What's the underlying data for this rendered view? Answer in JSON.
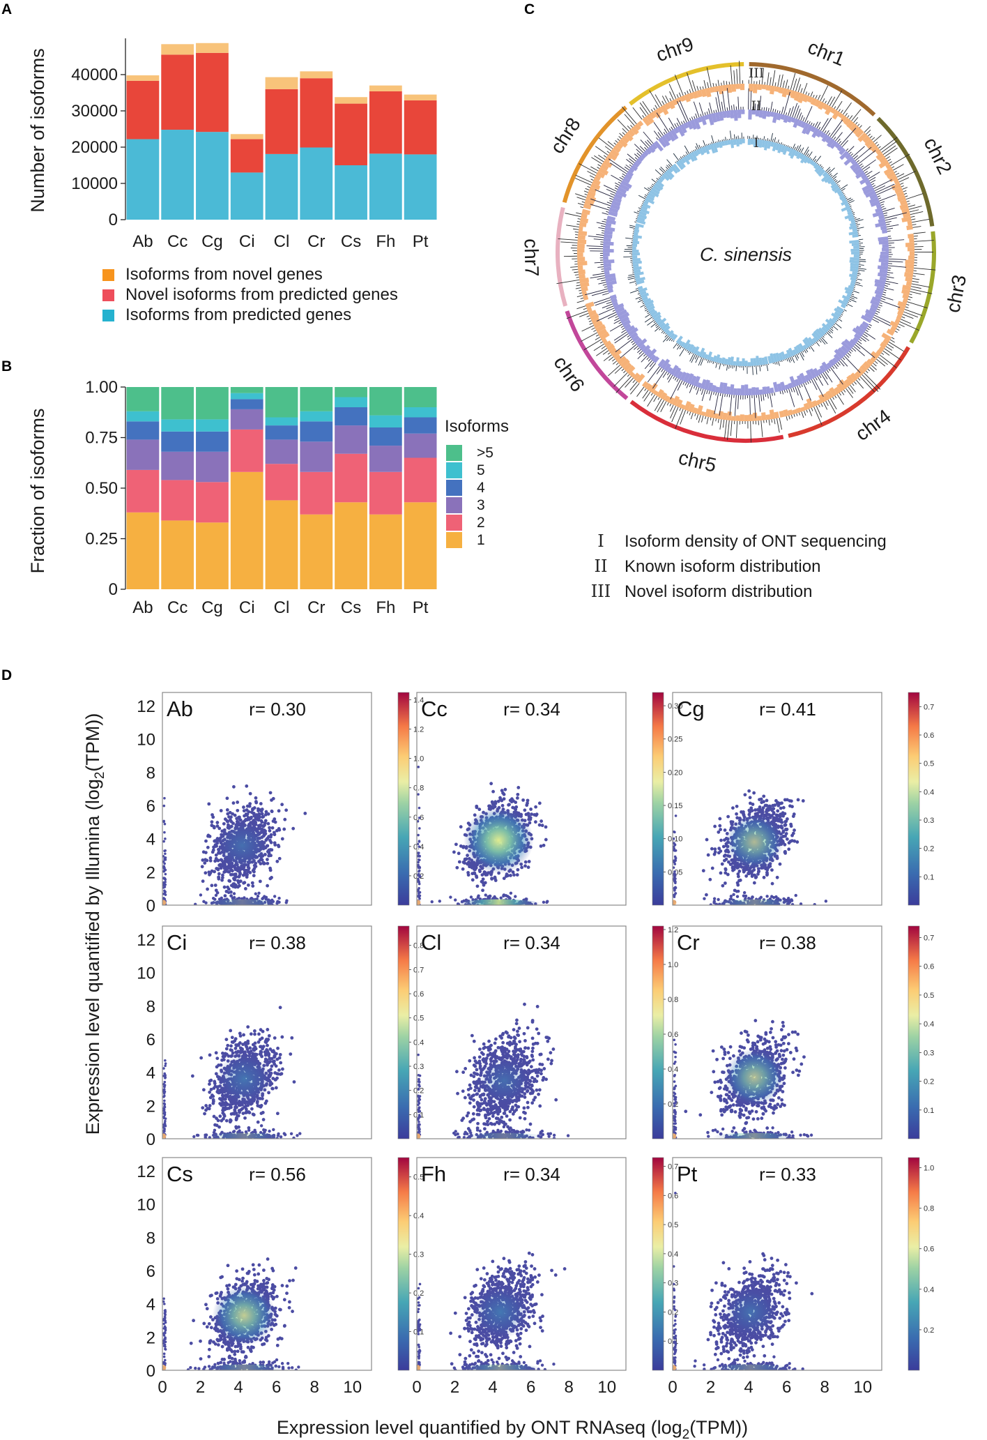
{
  "panel_labels": {
    "a": "A",
    "b": "B",
    "c": "C",
    "d": "D"
  },
  "chart_data": [
    {
      "type": "bar",
      "stacked": true,
      "title": "",
      "ylabel": "Number of isoforms",
      "xlabel": "",
      "ylim": [
        0,
        50000
      ],
      "yticks": [
        0,
        10000,
        20000,
        30000,
        40000
      ],
      "categories": [
        "Ab",
        "Cc",
        "Cg",
        "Ci",
        "Cl",
        "Cr",
        "Cs",
        "Fh",
        "Pt"
      ],
      "series": [
        {
          "name": "Isoforms from predicted genes",
          "color": "#4bbad6",
          "values": [
            22200,
            24800,
            24200,
            13000,
            18100,
            19900,
            15000,
            18200,
            18000
          ]
        },
        {
          "name": "Novel isoforms from predicted genes",
          "color": "#e8463a",
          "values": [
            16100,
            20700,
            21800,
            9200,
            17900,
            19100,
            17000,
            17200,
            14900
          ]
        },
        {
          "name": "Isoforms from novel genes",
          "color": "#f8c37a",
          "values": [
            1500,
            2900,
            2700,
            1400,
            3300,
            1900,
            1800,
            1600,
            1600
          ]
        }
      ],
      "legend": [
        {
          "label": "Isoforms from novel genes",
          "color": "#f7941d"
        },
        {
          "label": "Novel isoforms from predicted genes",
          "color": "#ee4e5b"
        },
        {
          "label": "Isoforms from predicted genes",
          "color": "#25b2cf"
        }
      ]
    },
    {
      "type": "bar",
      "stacked": true,
      "title": "",
      "ylabel": "Fraction of isoforms",
      "xlabel": "",
      "ylim": [
        0,
        1.0
      ],
      "yticks": [
        "0",
        "0.25",
        "0.50",
        "0.75",
        "1.00"
      ],
      "ytick_values": [
        0,
        0.25,
        0.5,
        0.75,
        1.0
      ],
      "categories": [
        "Ab",
        "Cc",
        "Cg",
        "Ci",
        "Cl",
        "Cr",
        "Cs",
        "Fh",
        "Pt"
      ],
      "legend_title": "Isoforms",
      "series": [
        {
          "name": "1",
          "color": "#f6b041",
          "values": [
            0.38,
            0.34,
            0.33,
            0.58,
            0.44,
            0.37,
            0.43,
            0.37,
            0.43
          ]
        },
        {
          "name": "2",
          "color": "#ef6276",
          "values": [
            0.21,
            0.2,
            0.2,
            0.21,
            0.18,
            0.21,
            0.24,
            0.21,
            0.22
          ]
        },
        {
          "name": "3",
          "color": "#8a72ba",
          "values": [
            0.15,
            0.14,
            0.15,
            0.1,
            0.12,
            0.15,
            0.14,
            0.13,
            0.12
          ]
        },
        {
          "name": "4",
          "color": "#4472bf",
          "values": [
            0.09,
            0.1,
            0.1,
            0.05,
            0.07,
            0.1,
            0.09,
            0.09,
            0.08
          ]
        },
        {
          "name": "5",
          "color": "#3ec0cf",
          "values": [
            0.05,
            0.06,
            0.06,
            0.03,
            0.04,
            0.05,
            0.05,
            0.06,
            0.05
          ]
        },
        {
          "name": ">5",
          "color": "#4dbf8b",
          "values": [
            0.12,
            0.16,
            0.16,
            0.03,
            0.15,
            0.12,
            0.05,
            0.14,
            0.1
          ]
        }
      ]
    },
    {
      "type": "circos",
      "center_label": "C. sinensis",
      "chromosomes": [
        "chr1",
        "chr2",
        "chr3",
        "chr4",
        "chr5",
        "chr6",
        "chr7",
        "chr8",
        "chr9"
      ],
      "chromosome_colors": [
        "#a0692d",
        "#6e6a2c",
        "#9aa72a",
        "#d83a2d",
        "#d92e3a",
        "#c2479a",
        "#e8b1c0",
        "#e2932a",
        "#e4c02b"
      ],
      "chromosome_sizes": [
        9,
        8,
        7.5,
        10,
        10.5,
        7,
        6.5,
        7.5,
        8
      ],
      "tracks": [
        {
          "numeral": "I",
          "label": "Isoform density of ONT sequencing"
        },
        {
          "numeral": "II",
          "label": "Known isoform distribution"
        },
        {
          "numeral": "III",
          "label": "Novel isoform distribution"
        }
      ]
    },
    {
      "type": "scatter",
      "subtype": "density-scatter-grid",
      "xlabel": "Expression level quantified by ONT RNAseq (log2(TPM))",
      "ylabel": "Expression level quantified by Illumina (log2(TPM))",
      "xlabel_parts": {
        "pre": "Expression level quantified by ONT RNAseq (log",
        "sub": "2",
        "post": "(TPM))"
      },
      "ylabel_parts": {
        "pre": "Expression level quantified by Illumina (log",
        "sub": "2",
        "post": "(TPM))"
      },
      "xlim": [
        0,
        11
      ],
      "ylim": [
        0,
        12.8
      ],
      "xticks": [
        0,
        2,
        4,
        6,
        8,
        10
      ],
      "yticks": [
        0,
        2,
        4,
        6,
        8,
        10,
        12
      ],
      "panels": [
        {
          "name": "Ab",
          "r": "r= 0.30",
          "center": [
            4.2,
            3.6
          ],
          "spread": [
            1.0,
            1.25
          ],
          "density_peak": 0.15,
          "bottom_band": 0.1,
          "cbar": [
            "0.2",
            "0.4",
            "0.6",
            "0.8",
            "1.0",
            "1.2",
            "1.4"
          ],
          "cbar_values": [
            0.2,
            0.4,
            0.6,
            0.8,
            1.0,
            1.2,
            1.4
          ],
          "cbar_max": 1.45
        },
        {
          "name": "Cc",
          "r": "r= 0.34",
          "center": [
            4.3,
            3.9
          ],
          "spread": [
            1.0,
            1.2
          ],
          "density_peak": 0.95,
          "bottom_band": 0.85,
          "cbar": [
            "0.05",
            "0.10",
            "0.15",
            "0.20",
            "0.25",
            "0.30"
          ],
          "cbar_values": [
            0.05,
            0.1,
            0.15,
            0.2,
            0.25,
            0.3
          ],
          "cbar_max": 0.32
        },
        {
          "name": "Cg",
          "r": "r= 0.41",
          "center": [
            4.3,
            3.8
          ],
          "spread": [
            1.0,
            1.2
          ],
          "density_peak": 0.45,
          "bottom_band": 0.2,
          "cbar": [
            "0.1",
            "0.2",
            "0.3",
            "0.4",
            "0.5",
            "0.6",
            "0.7"
          ],
          "cbar_values": [
            0.1,
            0.2,
            0.3,
            0.4,
            0.5,
            0.6,
            0.7
          ],
          "cbar_max": 0.75
        },
        {
          "name": "Ci",
          "r": "r= 0.38",
          "center": [
            4.3,
            3.6
          ],
          "spread": [
            1.0,
            1.3
          ],
          "density_peak": 0.3,
          "bottom_band": 0.15,
          "cbar": [
            "0.1",
            "0.2",
            "0.3",
            "0.4",
            "0.5",
            "0.6",
            "0.7",
            "0.8"
          ],
          "cbar_values": [
            0.1,
            0.2,
            0.3,
            0.4,
            0.5,
            0.6,
            0.7,
            0.8
          ],
          "cbar_max": 0.88
        },
        {
          "name": "Cl",
          "r": "r= 0.34",
          "center": [
            4.6,
            3.5
          ],
          "spread": [
            1.05,
            1.4
          ],
          "density_peak": 0.12,
          "bottom_band": 0.1,
          "cbar": [
            "0.2",
            "0.4",
            "0.6",
            "0.8",
            "1.0",
            "1.2"
          ],
          "cbar_values": [
            0.2,
            0.4,
            0.6,
            0.8,
            1.0,
            1.2
          ],
          "cbar_max": 1.22
        },
        {
          "name": "Cr",
          "r": "r= 0.38",
          "center": [
            4.3,
            3.7
          ],
          "spread": [
            1.0,
            1.2
          ],
          "density_peak": 0.5,
          "bottom_band": 0.3,
          "cbar": [
            "0.1",
            "0.2",
            "0.3",
            "0.4",
            "0.5",
            "0.6",
            "0.7"
          ],
          "cbar_values": [
            0.1,
            0.2,
            0.3,
            0.4,
            0.5,
            0.6,
            0.7
          ],
          "cbar_max": 0.74
        },
        {
          "name": "Cs",
          "r": "r= 0.56",
          "center": [
            4.3,
            3.3
          ],
          "spread": [
            1.0,
            1.2
          ],
          "density_peak": 0.65,
          "bottom_band": 0.2,
          "cbar": [
            "0.1",
            "0.2",
            "0.3",
            "0.4",
            "0.5"
          ],
          "cbar_values": [
            0.1,
            0.2,
            0.3,
            0.4,
            0.5
          ],
          "cbar_max": 0.55
        },
        {
          "name": "Fh",
          "r": "r= 0.34",
          "center": [
            4.4,
            3.5
          ],
          "spread": [
            1.0,
            1.35
          ],
          "density_peak": 0.35,
          "bottom_band": 0.3,
          "cbar": [
            "0.1",
            "0.2",
            "0.3",
            "0.4",
            "0.5",
            "0.6",
            "0.7"
          ],
          "cbar_values": [
            0.1,
            0.2,
            0.3,
            0.4,
            0.5,
            0.6,
            0.7
          ],
          "cbar_max": 0.73
        },
        {
          "name": "Pt",
          "r": "r= 0.33",
          "center": [
            4.1,
            3.5
          ],
          "spread": [
            1.0,
            1.3
          ],
          "density_peak": 0.2,
          "bottom_band": 0.15,
          "cbar": [
            "0.2",
            "0.4",
            "0.6",
            "0.8",
            "1.0"
          ],
          "cbar_values": [
            0.2,
            0.4,
            0.6,
            0.8,
            1.0
          ],
          "cbar_max": 1.05
        }
      ]
    }
  ]
}
